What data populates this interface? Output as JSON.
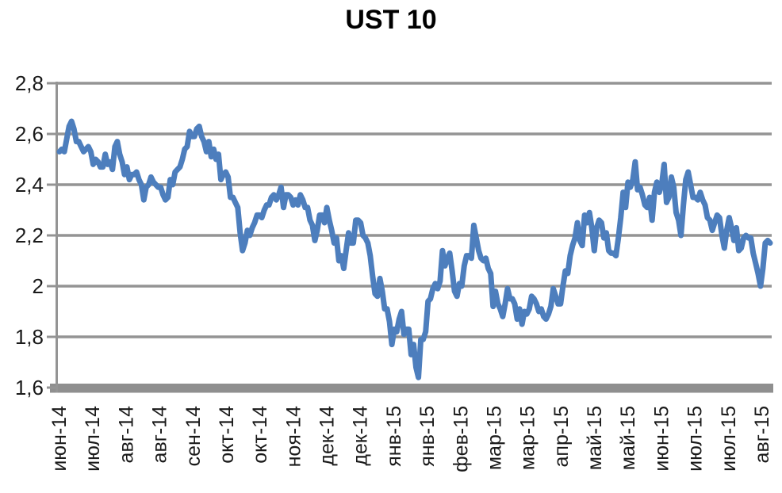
{
  "title": "UST 10",
  "colors": {
    "background": "#FFFFFF",
    "line": "#4D7EBD",
    "gridline": "#949494",
    "axis_bar": "#8F8F8F",
    "axis_line": "#949494",
    "tick_label_text": "#1A1A1A",
    "title_text": "#000000"
  },
  "chart_data": {
    "type": "line",
    "title": "UST 10",
    "xlabel": "",
    "ylabel": "",
    "ylim": [
      1.6,
      2.8
    ],
    "grid": "horizontal",
    "legend": "none",
    "decimal_separator": ",",
    "y_ticks": [
      2.8,
      2.6,
      2.4,
      2.2,
      2.0,
      1.8,
      1.6
    ],
    "y_tick_labels": [
      "2,8",
      "2,6",
      "2,4",
      "2,2",
      "2",
      "1,8",
      "1,6"
    ],
    "x_tick_labels": [
      "июн-14",
      "июл-14",
      "авг-14",
      "авг-14",
      "сен-14",
      "окт-14",
      "окт-14",
      "ноя-14",
      "дек-14",
      "дек-14",
      "янв-15",
      "янв-15",
      "фев-15",
      "мар-15",
      "мар-15",
      "апр-15",
      "май-15",
      "май-15",
      "июн-15",
      "июл-15",
      "июл-15",
      "авг-15"
    ],
    "x_tick_every_n_points": 14,
    "series": [
      {
        "name": "UST 10",
        "values": [
          2.53,
          2.54,
          2.53,
          2.58,
          2.63,
          2.65,
          2.62,
          2.57,
          2.57,
          2.55,
          2.53,
          2.54,
          2.55,
          2.53,
          2.48,
          2.5,
          2.49,
          2.47,
          2.47,
          2.52,
          2.48,
          2.49,
          2.46,
          2.55,
          2.57,
          2.52,
          2.49,
          2.44,
          2.47,
          2.42,
          2.44,
          2.44,
          2.45,
          2.42,
          2.4,
          2.34,
          2.39,
          2.4,
          2.43,
          2.41,
          2.4,
          2.39,
          2.39,
          2.36,
          2.34,
          2.35,
          2.42,
          2.4,
          2.45,
          2.46,
          2.47,
          2.5,
          2.54,
          2.55,
          2.61,
          2.59,
          2.59,
          2.62,
          2.63,
          2.59,
          2.57,
          2.53,
          2.57,
          2.51,
          2.54,
          2.5,
          2.52,
          2.42,
          2.44,
          2.45,
          2.43,
          2.35,
          2.35,
          2.33,
          2.31,
          2.21,
          2.14,
          2.17,
          2.22,
          2.2,
          2.23,
          2.25,
          2.28,
          2.28,
          2.27,
          2.3,
          2.32,
          2.32,
          2.35,
          2.36,
          2.34,
          2.36,
          2.39,
          2.31,
          2.36,
          2.36,
          2.35,
          2.32,
          2.34,
          2.32,
          2.36,
          2.34,
          2.31,
          2.31,
          2.26,
          2.24,
          2.18,
          2.22,
          2.28,
          2.28,
          2.25,
          2.31,
          2.26,
          2.22,
          2.17,
          2.19,
          2.1,
          2.12,
          2.07,
          2.14,
          2.21,
          2.17,
          2.17,
          2.26,
          2.26,
          2.25,
          2.2,
          2.19,
          2.17,
          2.12,
          2.04,
          1.97,
          1.96,
          2.03,
          1.98,
          1.91,
          1.91,
          1.86,
          1.77,
          1.83,
          1.82,
          1.87,
          1.9,
          1.81,
          1.83,
          1.83,
          1.73,
          1.77,
          1.68,
          1.64,
          1.79,
          1.79,
          1.82,
          1.94,
          1.95,
          1.99,
          2.01,
          1.99,
          2.02,
          2.14,
          2.08,
          2.11,
          2.13,
          2.06,
          1.98,
          1.96,
          2.01,
          2.0,
          2.08,
          2.12,
          2.12,
          2.11,
          2.24,
          2.19,
          2.14,
          2.11,
          2.1,
          2.11,
          2.07,
          2.05,
          1.92,
          1.98,
          1.93,
          1.91,
          1.88,
          1.93,
          1.99,
          1.95,
          1.95,
          1.93,
          1.87,
          1.91,
          1.85,
          1.9,
          1.89,
          1.91,
          1.96,
          1.95,
          1.93,
          1.9,
          1.91,
          1.88,
          1.87,
          1.89,
          1.92,
          1.99,
          1.96,
          1.93,
          1.93,
          2.0,
          2.06,
          2.05,
          2.12,
          2.16,
          2.19,
          2.25,
          2.18,
          2.16,
          2.28,
          2.25,
          2.29,
          2.23,
          2.14,
          2.23,
          2.26,
          2.25,
          2.19,
          2.21,
          2.14,
          2.13,
          2.13,
          2.12,
          2.19,
          2.27,
          2.37,
          2.31,
          2.41,
          2.39,
          2.42,
          2.49,
          2.38,
          2.39,
          2.36,
          2.32,
          2.31,
          2.35,
          2.26,
          2.37,
          2.41,
          2.37,
          2.4,
          2.48,
          2.33,
          2.35,
          2.43,
          2.39,
          2.29,
          2.26,
          2.2,
          2.32,
          2.42,
          2.45,
          2.4,
          2.35,
          2.35,
          2.34,
          2.37,
          2.34,
          2.32,
          2.27,
          2.26,
          2.22,
          2.25,
          2.28,
          2.27,
          2.2,
          2.15,
          2.22,
          2.27,
          2.23,
          2.18,
          2.23,
          2.14,
          2.15,
          2.19,
          2.2,
          2.19,
          2.19,
          2.13,
          2.09,
          2.05,
          2.0,
          2.07,
          2.17,
          2.18,
          2.17
        ]
      }
    ]
  }
}
